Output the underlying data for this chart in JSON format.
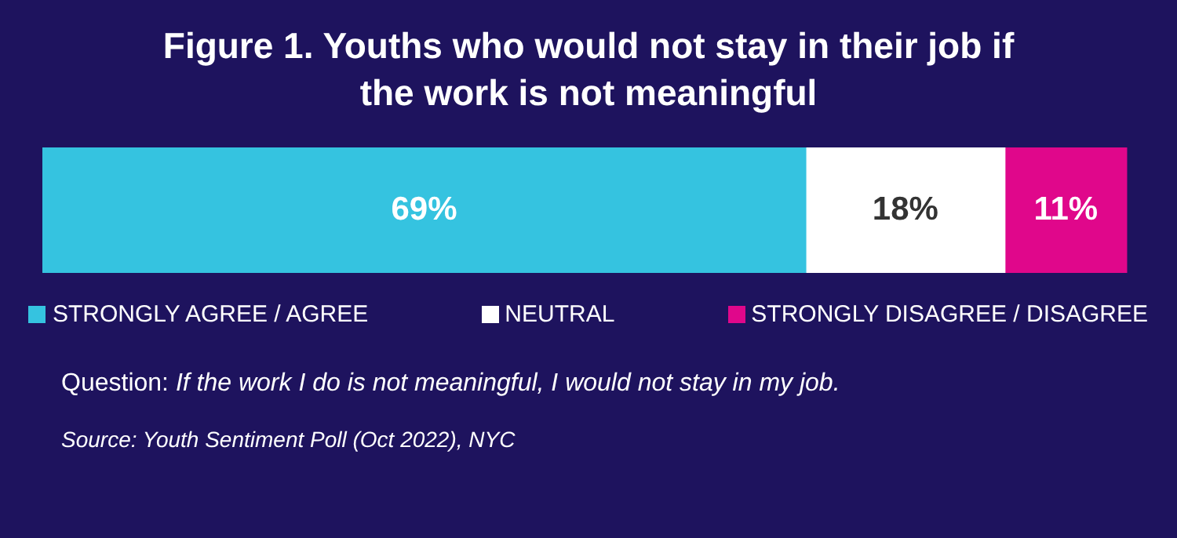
{
  "chart_data": {
    "type": "bar",
    "orientation": "horizontal",
    "stacked": true,
    "title": "Figure 1. Youths who would not stay in their job if the work is not meaningful",
    "categories": [
      null
    ],
    "series": [
      {
        "name": "STRONGLY AGREE / AGREE",
        "color": "#35c3e0",
        "values": [
          69
        ],
        "value_labels": [
          "69%"
        ]
      },
      {
        "name": "NEUTRAL",
        "color": "#ffffff",
        "values": [
          18
        ],
        "value_labels": [
          "18%"
        ]
      },
      {
        "name": "STRONGLY DISAGREE / DISAGREE",
        "color": "#e0078b",
        "values": [
          11
        ],
        "value_labels": [
          "11%"
        ]
      }
    ],
    "legend": "bottom",
    "annotations": [
      "Question: If the work I do is not meaningful, I would not stay in my job.",
      "Source: Youth Sentiment Poll (Oct 2022), NYC"
    ]
  }
}
